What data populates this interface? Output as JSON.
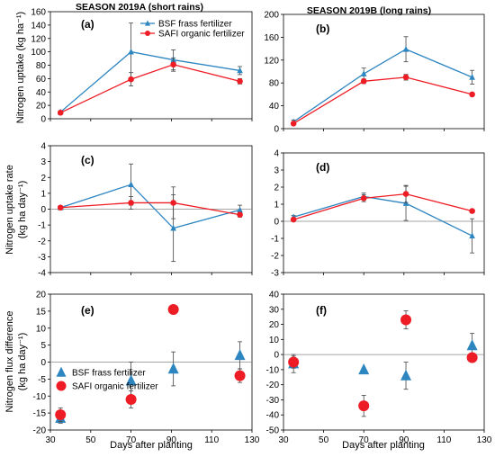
{
  "figure": {
    "season_a_title": "SEASON 2019A (short rains)",
    "season_b_title": "SEASON 2019B (long rains)",
    "ylabel_top": "Nitrogen uptake (kg ha⁻¹)",
    "ylabel_mid_1": "Nitrogen uptake rate",
    "ylabel_mid_2": "(kg ha day⁻¹)",
    "ylabel_bot_1": "Nitrogen flux difference",
    "ylabel_bot_2": "(kg ha day⁻¹)",
    "xlabel": "Days after planting",
    "colors": {
      "bsf": "#2e86c1",
      "safi": "#ee1c25"
    }
  },
  "chart_data": [
    {
      "panel": "(a)",
      "type": "line",
      "x": [
        35,
        70,
        91,
        124
      ],
      "xlim": [
        30,
        130
      ],
      "xticks": [
        30,
        50,
        70,
        90,
        110,
        130
      ],
      "ylim": [
        0,
        160
      ],
      "yticks": [
        0,
        20,
        40,
        60,
        80,
        100,
        120,
        140,
        160
      ],
      "legend": "top-right",
      "series": [
        {
          "name": "BSF frass fertilizer",
          "marker": "triangle",
          "values": [
            10,
            100,
            88,
            72
          ],
          "err": [
            2,
            43,
            15,
            6
          ]
        },
        {
          "name": "SAFI organic fertilizer",
          "marker": "circle",
          "values": [
            9,
            59,
            81,
            56
          ],
          "err": [
            2,
            10,
            10,
            4
          ]
        }
      ]
    },
    {
      "panel": "(b)",
      "type": "line",
      "x": [
        35,
        70,
        91,
        124
      ],
      "xlim": [
        30,
        130
      ],
      "xticks": [
        30,
        50,
        70,
        90,
        110,
        130
      ],
      "ylim": [
        0,
        200
      ],
      "yticks": [
        0,
        40,
        80,
        120,
        160,
        200
      ],
      "series": [
        {
          "marker": "triangle",
          "values": [
            12,
            96,
            139,
            90
          ],
          "err": [
            3,
            10,
            22,
            12
          ]
        },
        {
          "marker": "circle",
          "values": [
            9,
            83,
            90,
            60
          ],
          "err": [
            2,
            4,
            5,
            3
          ]
        }
      ]
    },
    {
      "panel": "(c)",
      "type": "line",
      "x": [
        35,
        70,
        91,
        124
      ],
      "xlim": [
        30,
        130
      ],
      "xticks": [
        30,
        50,
        70,
        90,
        110,
        130
      ],
      "ylim": [
        -4,
        4
      ],
      "yticks": [
        -4,
        -3,
        -2,
        -1,
        0,
        1,
        2,
        3,
        4
      ],
      "series": [
        {
          "marker": "triangle",
          "values": [
            0.1,
            1.55,
            -1.2,
            -0.05
          ],
          "err": [
            0.1,
            1.3,
            2.1,
            0.3
          ]
        },
        {
          "marker": "circle",
          "values": [
            0.1,
            0.4,
            0.4,
            -0.35
          ],
          "err": [
            0.1,
            0.4,
            1.0,
            0.15
          ]
        }
      ]
    },
    {
      "panel": "(d)",
      "type": "line",
      "x": [
        35,
        70,
        91,
        124
      ],
      "xlim": [
        30,
        130
      ],
      "xticks": [
        30,
        50,
        70,
        90,
        110,
        130
      ],
      "ylim": [
        -3,
        4
      ],
      "yticks": [
        -3,
        -2,
        -1,
        0,
        1,
        2,
        3,
        4
      ],
      "series": [
        {
          "marker": "triangle",
          "values": [
            0.25,
            1.45,
            1.05,
            -0.85
          ],
          "err": [
            0.1,
            0.2,
            1.0,
            1.0
          ]
        },
        {
          "marker": "circle",
          "values": [
            0.1,
            1.35,
            1.6,
            0.6
          ],
          "err": [
            0.05,
            0.2,
            0.5,
            0.1
          ]
        }
      ]
    },
    {
      "panel": "(e)",
      "type": "scatter",
      "x": [
        35,
        70,
        91,
        124
      ],
      "xlim": [
        30,
        130
      ],
      "xticks": [
        30,
        50,
        70,
        90,
        110,
        130
      ],
      "ylim": [
        -20,
        20
      ],
      "yticks": [
        -20,
        -15,
        -10,
        -5,
        0,
        5,
        10,
        15,
        20
      ],
      "legend": "left",
      "series": [
        {
          "name": "BSF frass fertilizer",
          "marker": "triangle",
          "values": [
            -16.5,
            -5.5,
            -2,
            2
          ],
          "err": [
            1.5,
            5.5,
            5,
            4
          ]
        },
        {
          "name": "SAFI organic fertilizer",
          "marker": "circle",
          "values": [
            -15.5,
            -11,
            15.5,
            -4
          ],
          "err": [
            2,
            2.5,
            0,
            2
          ]
        }
      ]
    },
    {
      "panel": "(f)",
      "type": "scatter",
      "x": [
        35,
        70,
        91,
        124
      ],
      "xlim": [
        30,
        130
      ],
      "xticks": [
        30,
        50,
        70,
        90,
        110,
        130
      ],
      "ylim": [
        -50,
        40
      ],
      "yticks": [
        -50,
        -40,
        -30,
        -20,
        -10,
        0,
        10,
        20,
        30,
        40
      ],
      "series": [
        {
          "marker": "triangle",
          "values": [
            -6,
            -10,
            -14,
            6
          ],
          "err": [
            6,
            0,
            9,
            8
          ]
        },
        {
          "marker": "circle",
          "values": [
            -5,
            -34,
            23,
            -2
          ],
          "err": [
            4,
            7,
            6,
            3
          ]
        }
      ]
    }
  ]
}
